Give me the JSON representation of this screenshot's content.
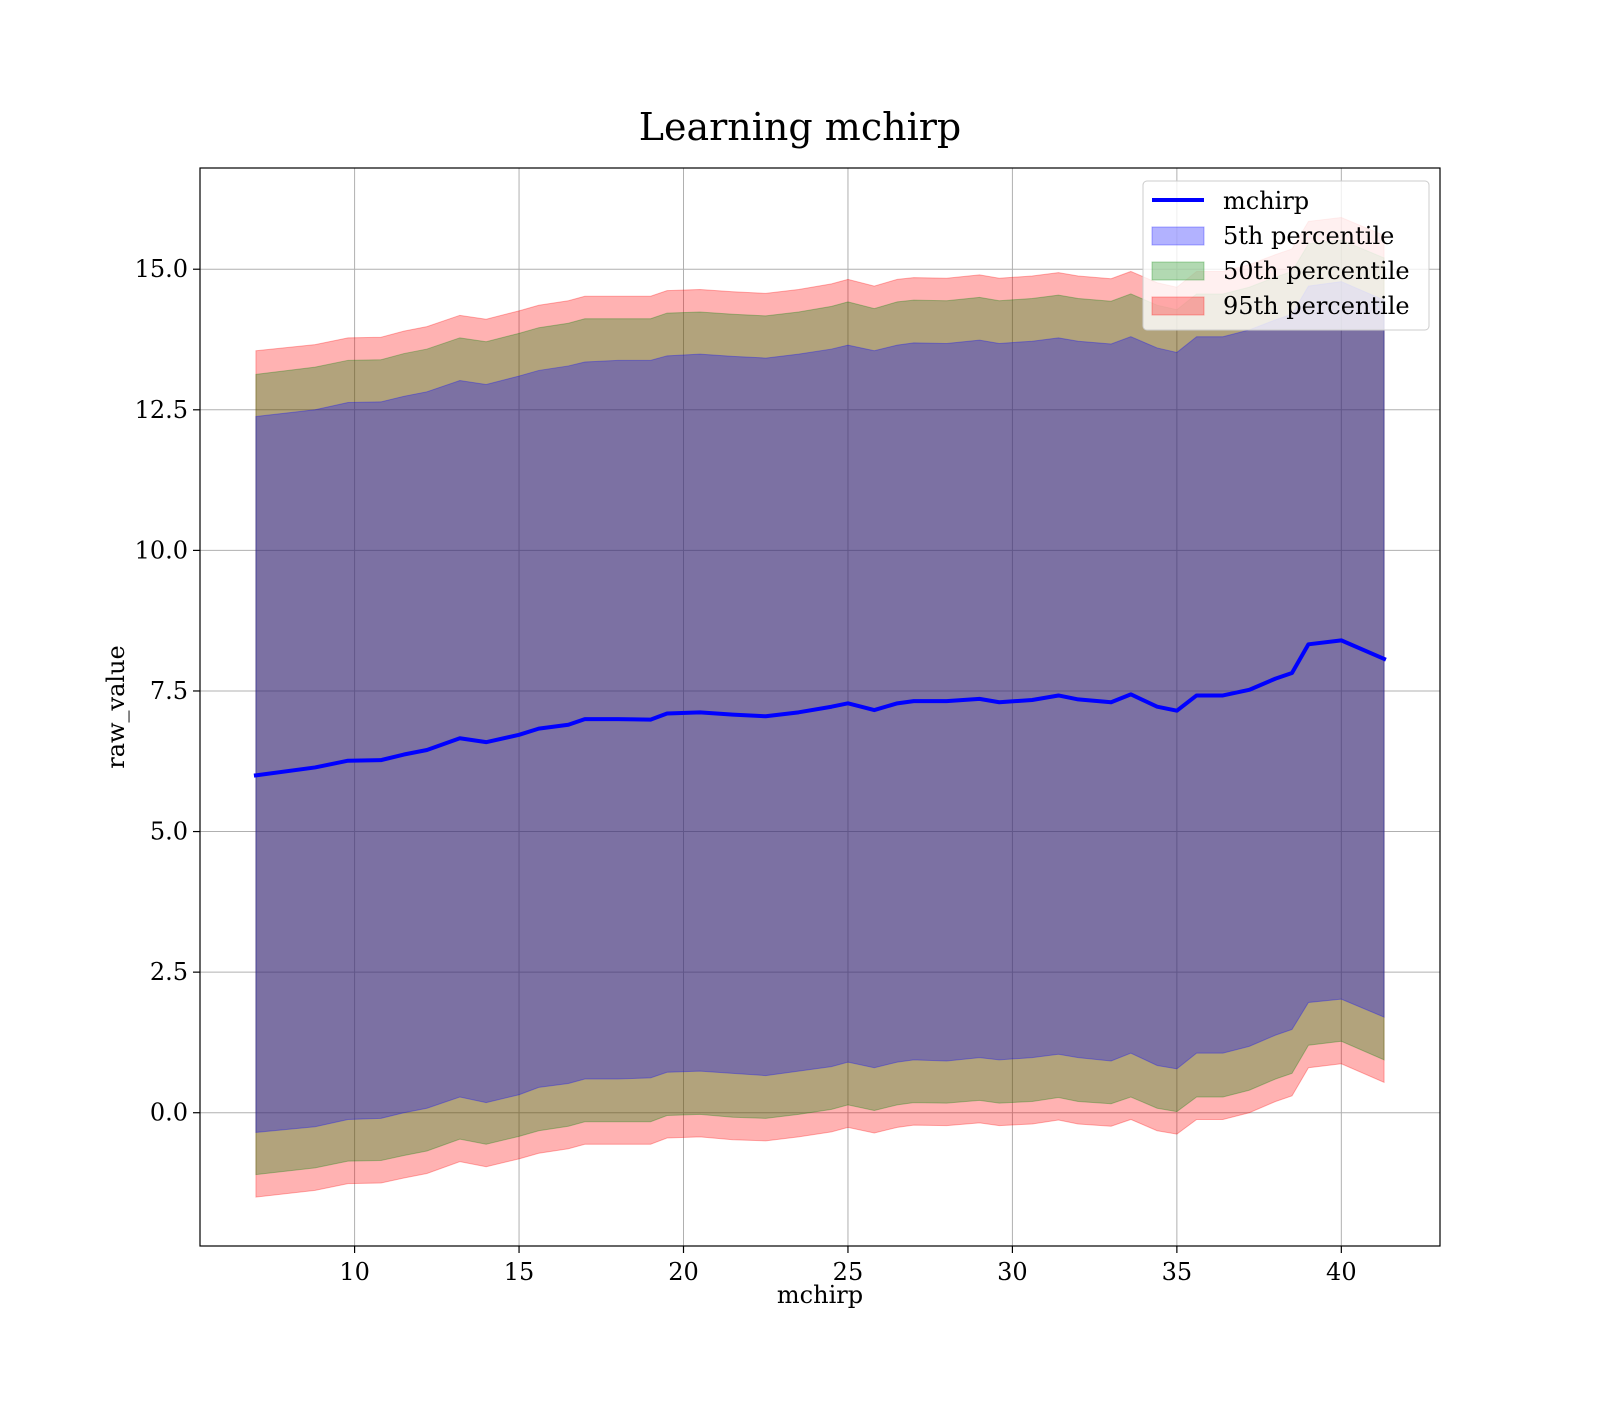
{
  "chart_data": {
    "type": "area",
    "title": "Learning mchirp",
    "xlabel": "mchirp",
    "ylabel": "raw_value",
    "xlim": [
      5.3,
      43.0
    ],
    "ylim": [
      -2.37,
      16.8
    ],
    "xticks": [
      10,
      15,
      20,
      25,
      30,
      35,
      40
    ],
    "yticks": [
      0.0,
      2.5,
      5.0,
      7.5,
      10.0,
      12.5,
      15.0
    ],
    "xtick_labels": [
      "10",
      "15",
      "20",
      "25",
      "30",
      "35",
      "40"
    ],
    "ytick_labels": [
      "0.0",
      "2.5",
      "5.0",
      "7.5",
      "10.0",
      "12.5",
      "15.0"
    ],
    "grid": true,
    "legend_position": "top-right",
    "x": [
      7.0,
      8.8,
      9.8,
      10.8,
      11.5,
      12.2,
      13.2,
      14.0,
      15.0,
      15.6,
      16.5,
      17.0,
      18.0,
      19.0,
      19.5,
      20.5,
      21.5,
      22.5,
      23.5,
      24.5,
      25.0,
      25.8,
      26.5,
      27.0,
      28.0,
      29.0,
      29.6,
      30.6,
      31.4,
      32.0,
      33.0,
      33.6,
      34.4,
      35.0,
      35.6,
      36.4,
      37.2,
      38.0,
      38.5,
      39.0,
      40.0,
      41.3
    ],
    "series": [
      {
        "name": "mchirp",
        "values": [
          6.0,
          6.14,
          6.26,
          6.27,
          6.37,
          6.45,
          6.66,
          6.59,
          6.72,
          6.83,
          6.9,
          7.0,
          7.0,
          6.99,
          7.1,
          7.12,
          7.08,
          7.05,
          7.12,
          7.22,
          7.28,
          7.16,
          7.28,
          7.32,
          7.32,
          7.36,
          7.3,
          7.34,
          7.42,
          7.35,
          7.3,
          7.44,
          7.22,
          7.15,
          7.42,
          7.42,
          7.52,
          7.72,
          7.82,
          8.33,
          8.4,
          8.07
        ]
      },
      {
        "name": "5th percentile",
        "lower": [
          -0.35,
          -0.25,
          -0.12,
          -0.1,
          0.0,
          0.08,
          0.28,
          0.18,
          0.32,
          0.45,
          0.52,
          0.6,
          0.6,
          0.62,
          0.72,
          0.74,
          0.7,
          0.66,
          0.74,
          0.82,
          0.9,
          0.8,
          0.9,
          0.94,
          0.92,
          0.98,
          0.94,
          0.98,
          1.04,
          0.98,
          0.92,
          1.06,
          0.84,
          0.78,
          1.06,
          1.06,
          1.18,
          1.38,
          1.48,
          1.96,
          2.02,
          1.7
        ],
        "upper": [
          12.38,
          12.5,
          12.63,
          12.64,
          12.74,
          12.82,
          13.02,
          12.95,
          13.1,
          13.2,
          13.28,
          13.35,
          13.38,
          13.38,
          13.46,
          13.49,
          13.45,
          13.42,
          13.49,
          13.58,
          13.65,
          13.55,
          13.65,
          13.69,
          13.68,
          13.74,
          13.68,
          13.72,
          13.78,
          13.72,
          13.67,
          13.8,
          13.6,
          13.52,
          13.8,
          13.8,
          13.92,
          14.1,
          14.2,
          14.7,
          14.78,
          14.45
        ]
      },
      {
        "name": "50th percentile",
        "lower": [
          -1.1,
          -0.98,
          -0.86,
          -0.85,
          -0.76,
          -0.68,
          -0.47,
          -0.56,
          -0.42,
          -0.32,
          -0.24,
          -0.16,
          -0.16,
          -0.16,
          -0.05,
          -0.03,
          -0.08,
          -0.1,
          -0.03,
          0.06,
          0.14,
          0.04,
          0.14,
          0.18,
          0.17,
          0.22,
          0.17,
          0.2,
          0.27,
          0.2,
          0.16,
          0.28,
          0.08,
          0.02,
          0.28,
          0.28,
          0.4,
          0.6,
          0.7,
          1.2,
          1.27,
          0.94
        ],
        "upper": [
          13.13,
          13.26,
          13.38,
          13.39,
          13.5,
          13.58,
          13.78,
          13.71,
          13.86,
          13.96,
          14.04,
          14.12,
          14.12,
          14.12,
          14.22,
          14.24,
          14.2,
          14.17,
          14.24,
          14.34,
          14.42,
          14.3,
          14.42,
          14.45,
          14.44,
          14.5,
          14.44,
          14.48,
          14.54,
          14.48,
          14.43,
          14.56,
          14.36,
          14.28,
          14.56,
          14.56,
          14.68,
          14.86,
          14.96,
          15.45,
          15.52,
          15.2
        ]
      },
      {
        "name": "95th percentile",
        "lower": [
          -1.5,
          -1.38,
          -1.26,
          -1.25,
          -1.16,
          -1.08,
          -0.87,
          -0.96,
          -0.82,
          -0.72,
          -0.64,
          -0.56,
          -0.56,
          -0.56,
          -0.45,
          -0.43,
          -0.48,
          -0.5,
          -0.43,
          -0.34,
          -0.26,
          -0.36,
          -0.26,
          -0.22,
          -0.23,
          -0.18,
          -0.23,
          -0.2,
          -0.13,
          -0.2,
          -0.24,
          -0.12,
          -0.32,
          -0.38,
          -0.12,
          -0.12,
          0.0,
          0.2,
          0.3,
          0.8,
          0.87,
          0.54
        ],
        "upper": [
          13.55,
          13.66,
          13.78,
          13.79,
          13.9,
          13.98,
          14.18,
          14.11,
          14.26,
          14.36,
          14.44,
          14.52,
          14.52,
          14.52,
          14.62,
          14.64,
          14.6,
          14.57,
          14.64,
          14.74,
          14.82,
          14.7,
          14.82,
          14.85,
          14.84,
          14.9,
          14.84,
          14.88,
          14.94,
          14.88,
          14.83,
          14.96,
          14.76,
          14.68,
          14.96,
          14.96,
          15.08,
          15.26,
          15.36,
          15.85,
          15.92,
          15.6
        ]
      }
    ],
    "colors": {
      "line": "#0000ff",
      "band_5th": "#0000ff",
      "band_50th": "#008000",
      "band_95th": "#ff0000",
      "grid": "#b0b0b0",
      "legend_edge": "#cccccc"
    }
  }
}
